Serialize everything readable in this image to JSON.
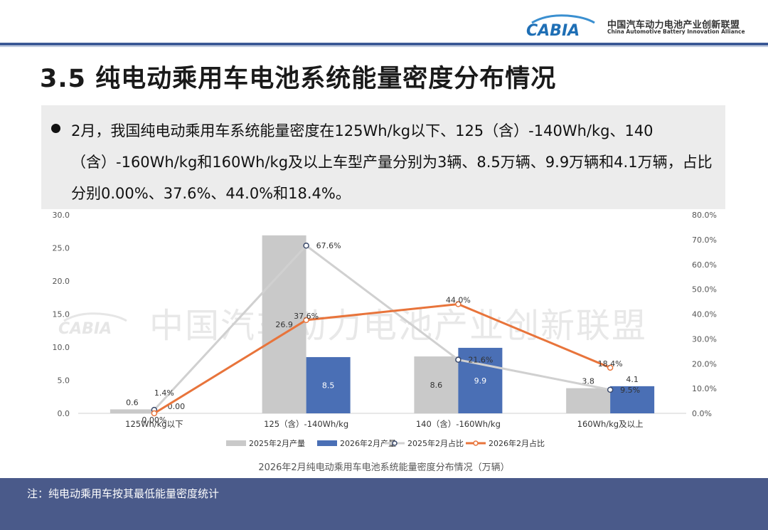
{
  "header": {
    "logo_text": "CABIA",
    "org_name_cn": "中国汽车动力电池产业创新联盟",
    "org_name_en": "China Automotive Battery Innovation Alliance"
  },
  "page_title": "3.5 纯电动乘用车电池系统能量密度分布情况",
  "summary": "2月，我国纯电动乘用车系统能量密度在125Wh/kg以下、125（含）-140Wh/kg、140（含）-160Wh/kg和160Wh/kg及以上车型产量分别为3辆、8.5万辆、9.9万辆和4.1万辆，占比分别0.00%、37.6%、44.0%和18.4%。",
  "watermark": "中国汽车动力电池产业创新联盟",
  "colors": {
    "bar_2025": "#c9c9c9",
    "bar_2026": "#4a6fb5",
    "line_2025": "#d0d0d0",
    "line_2026": "#e8743b",
    "header_line": "#3c5a96",
    "footer_bg": "#4a5a8a"
  },
  "chart_data": {
    "type": "bar",
    "title": "2026年2月纯电动乘用车电池系统能量密度分布情况（万辆）",
    "categories": [
      "125Wh/kg以下",
      "125（含）-140Wh/kg",
      "140（含）-160Wh/kg",
      "160Wh/kg及以上"
    ],
    "series": [
      {
        "name": "2025年2月产量",
        "kind": "bar",
        "axis": "left",
        "values": [
          0.6,
          26.9,
          8.6,
          3.8
        ],
        "labels": [
          "0.6",
          "26.9",
          "8.6",
          "3.8"
        ]
      },
      {
        "name": "2026年2月产量",
        "kind": "bar",
        "axis": "left",
        "values": [
          0.0,
          8.5,
          9.9,
          4.1
        ],
        "labels": [
          "0.00",
          "8.5",
          "9.9",
          "4.1"
        ]
      },
      {
        "name": "2025年2月占比",
        "kind": "line",
        "axis": "right",
        "values": [
          1.4,
          67.6,
          21.6,
          9.5
        ],
        "labels": [
          "1.4%",
          "67.6%",
          "21.6%",
          "9.5%"
        ]
      },
      {
        "name": "2026年2月占比",
        "kind": "line",
        "axis": "right",
        "values": [
          0.0,
          37.6,
          44.0,
          18.4
        ],
        "labels": [
          "0.00%",
          "37.6%",
          "44.0%",
          "18.4%"
        ]
      }
    ],
    "y_left": {
      "min": 0,
      "max": 30,
      "ticks": [
        "0.0",
        "5.0",
        "10.0",
        "15.0",
        "20.0",
        "25.0",
        "30.0"
      ]
    },
    "y_right": {
      "min": 0,
      "max": 80,
      "ticks": [
        "0.0%",
        "10.0%",
        "20.0%",
        "30.0%",
        "40.0%",
        "50.0%",
        "60.0%",
        "70.0%",
        "80.0%"
      ]
    },
    "grid": false,
    "legend": "bottom"
  },
  "footer": {
    "note": "注：纯电动乘用车按其最低能量密度统计"
  }
}
